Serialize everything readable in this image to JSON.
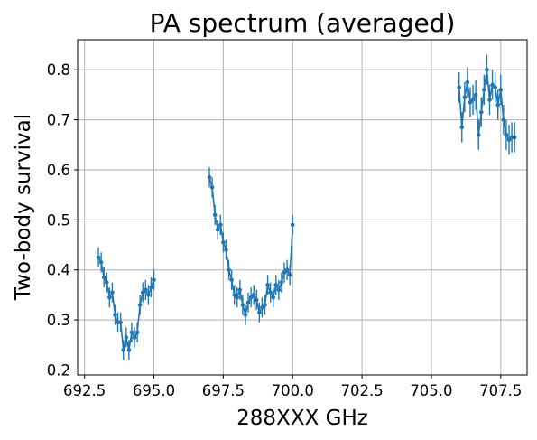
{
  "chart_data": {
    "type": "line",
    "title": "PA spectrum (averaged)",
    "xlabel": "288XXX GHz",
    "ylabel": "Two-body survival",
    "xlim": [
      692.25,
      708.45
    ],
    "ylim": [
      0.19,
      0.86
    ],
    "xticks": [
      692.5,
      695.0,
      697.5,
      700.0,
      702.5,
      705.0,
      707.5
    ],
    "xtick_labels": [
      "692.5",
      "695.0",
      "697.5",
      "700.0",
      "702.5",
      "705.0",
      "707.5"
    ],
    "yticks": [
      0.2,
      0.3,
      0.4,
      0.5,
      0.6,
      0.7,
      0.8
    ],
    "ytick_labels": [
      "0.2",
      "0.3",
      "0.4",
      "0.5",
      "0.6",
      "0.7",
      "0.8"
    ],
    "grid": true,
    "color": "#1f77b4",
    "markers": true,
    "error_bars": true,
    "segments": [
      {
        "x": [
          693.0,
          693.1,
          693.2,
          693.3,
          693.4,
          693.5,
          693.6,
          693.7,
          693.8,
          693.9,
          694.0,
          694.1,
          694.2,
          694.3,
          694.4,
          694.5,
          694.6,
          694.7,
          694.8,
          694.9,
          695.0
        ],
        "y": [
          0.425,
          0.415,
          0.385,
          0.375,
          0.345,
          0.355,
          0.31,
          0.295,
          0.295,
          0.24,
          0.265,
          0.24,
          0.275,
          0.265,
          0.275,
          0.33,
          0.355,
          0.36,
          0.35,
          0.365,
          0.38
        ],
        "err": [
          0.02,
          0.02,
          0.02,
          0.02,
          0.02,
          0.02,
          0.02,
          0.02,
          0.02,
          0.02,
          0.02,
          0.02,
          0.02,
          0.02,
          0.02,
          0.02,
          0.02,
          0.02,
          0.02,
          0.02,
          0.02
        ]
      },
      {
        "x": [
          697.0,
          697.1,
          697.2,
          697.3,
          697.4,
          697.5,
          697.6,
          697.7,
          697.8,
          697.9,
          698.0,
          698.1,
          698.2,
          698.3,
          698.4,
          698.5,
          698.6,
          698.7,
          698.8,
          698.9,
          699.0,
          699.1,
          699.2,
          699.3,
          699.4,
          699.5,
          699.6,
          699.7,
          699.8,
          699.9,
          700.0
        ],
        "y": [
          0.585,
          0.565,
          0.51,
          0.48,
          0.49,
          0.455,
          0.44,
          0.4,
          0.38,
          0.35,
          0.345,
          0.36,
          0.33,
          0.31,
          0.335,
          0.345,
          0.35,
          0.34,
          0.315,
          0.325,
          0.33,
          0.37,
          0.355,
          0.345,
          0.37,
          0.36,
          0.375,
          0.395,
          0.4,
          0.39,
          0.49
        ],
        "err": [
          0.02,
          0.02,
          0.02,
          0.02,
          0.02,
          0.02,
          0.02,
          0.02,
          0.02,
          0.02,
          0.02,
          0.02,
          0.02,
          0.02,
          0.02,
          0.02,
          0.02,
          0.02,
          0.02,
          0.02,
          0.02,
          0.02,
          0.02,
          0.02,
          0.02,
          0.02,
          0.02,
          0.02,
          0.02,
          0.02,
          0.02
        ]
      },
      {
        "x": [
          706.0,
          706.1,
          706.2,
          706.3,
          706.4,
          706.5,
          706.6,
          706.7,
          706.8,
          706.9,
          707.0,
          707.1,
          707.2,
          707.3,
          707.4,
          707.5,
          707.6,
          707.7,
          707.8,
          707.9,
          708.0
        ],
        "y": [
          0.765,
          0.685,
          0.745,
          0.775,
          0.735,
          0.74,
          0.75,
          0.67,
          0.715,
          0.76,
          0.8,
          0.74,
          0.77,
          0.765,
          0.73,
          0.76,
          0.7,
          0.67,
          0.66,
          0.665,
          0.665
        ],
        "err": [
          0.03,
          0.03,
          0.03,
          0.03,
          0.03,
          0.03,
          0.03,
          0.03,
          0.03,
          0.03,
          0.03,
          0.03,
          0.03,
          0.03,
          0.03,
          0.03,
          0.03,
          0.03,
          0.03,
          0.03,
          0.03
        ]
      }
    ]
  }
}
